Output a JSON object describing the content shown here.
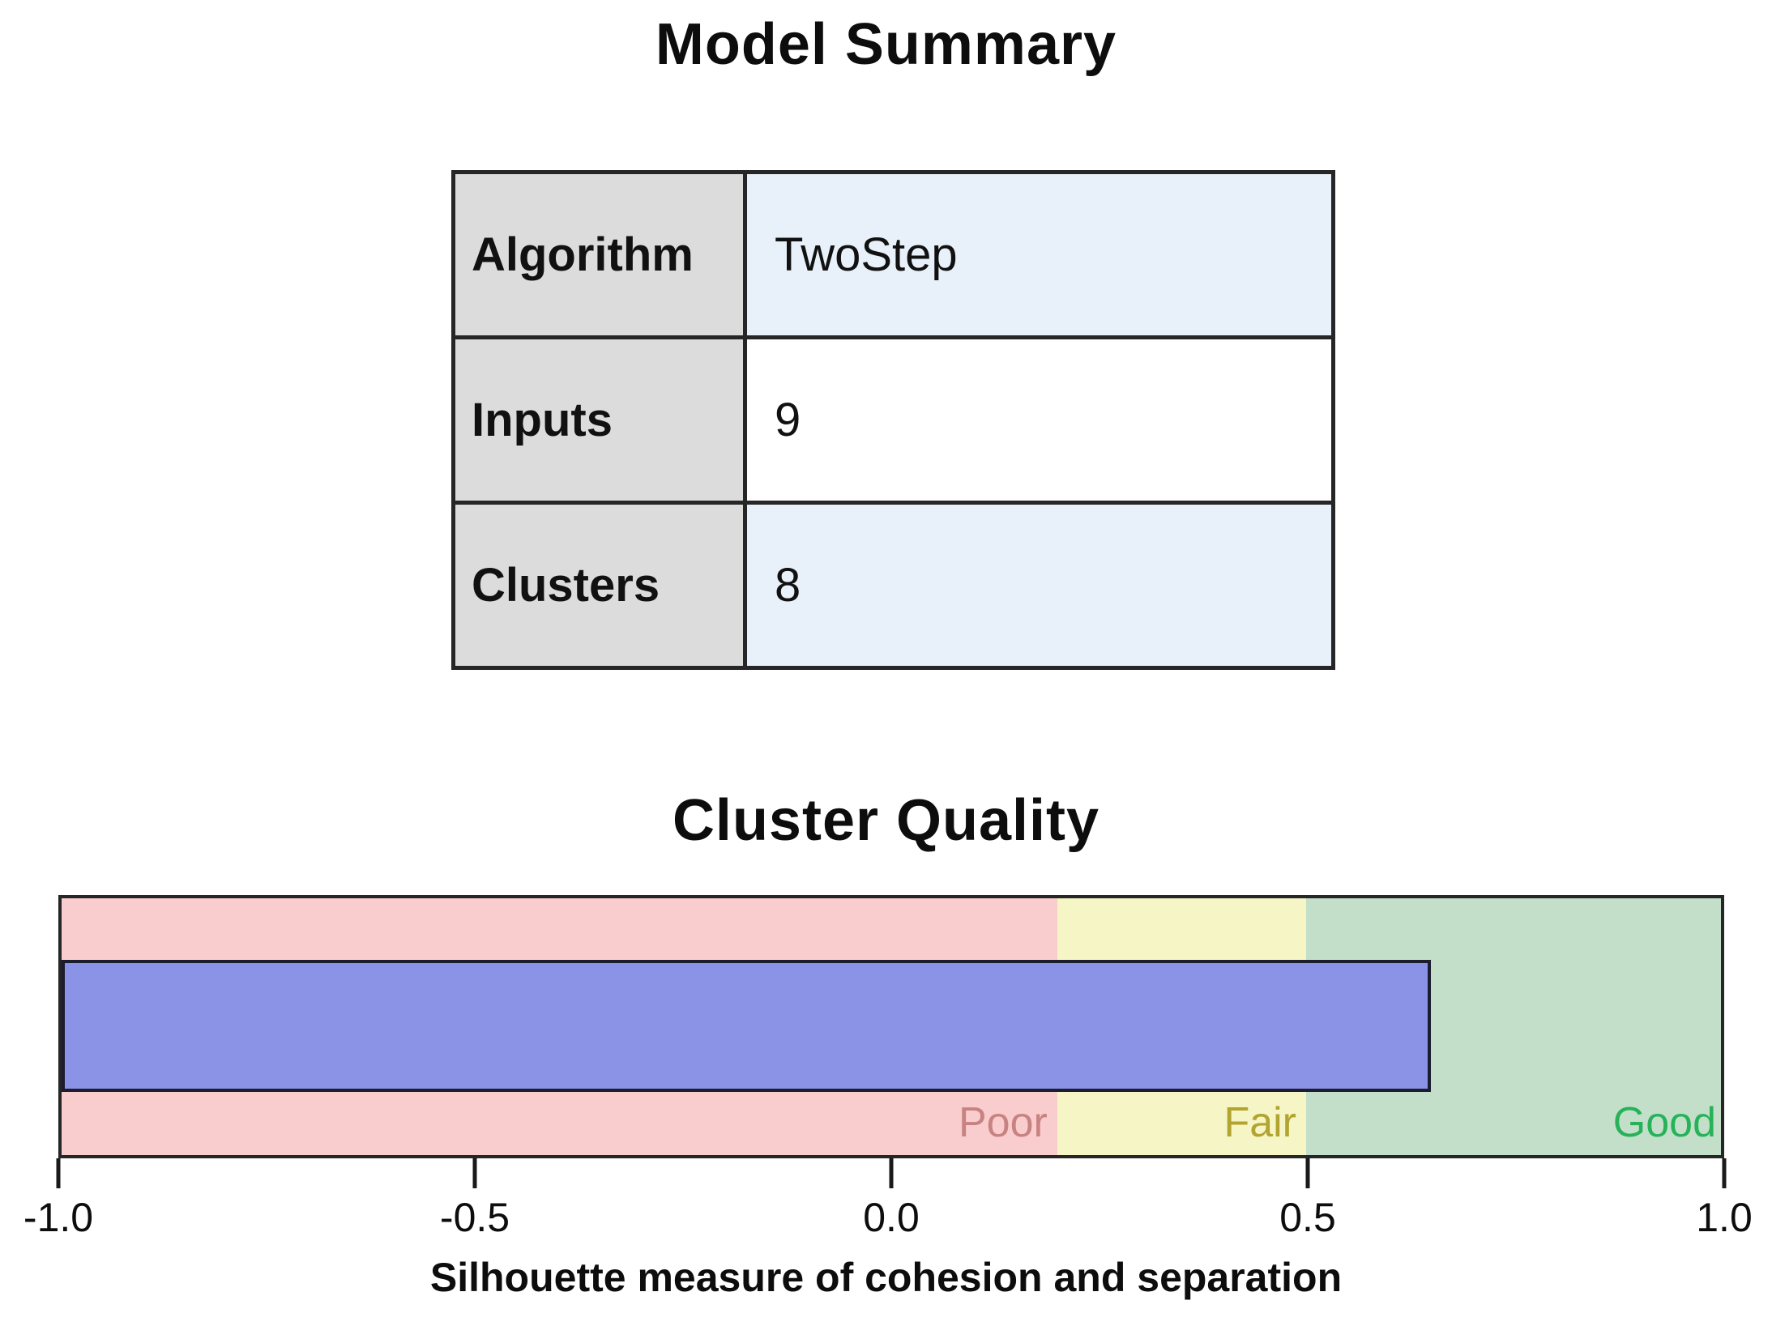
{
  "model_summary": {
    "title": "Model Summary",
    "rows": [
      {
        "label": "Algorithm",
        "value": "TwoStep"
      },
      {
        "label": "Inputs",
        "value": "9"
      },
      {
        "label": "Clusters",
        "value": "8"
      }
    ]
  },
  "chart_data": {
    "type": "bar",
    "title": "Cluster Quality",
    "xlabel": "Silhouette measure of cohesion and separation",
    "xlim": [
      -1.0,
      1.0
    ],
    "x_ticks": [
      "-1.0",
      "-0.5",
      "0.0",
      "0.5",
      "1.0"
    ],
    "grid": false,
    "legend": "none",
    "bar_start": -1.0,
    "bar_value": 0.65,
    "bar_color": "#8b93e6",
    "zones": [
      {
        "label": "Poor",
        "from": -1.0,
        "to": 0.2,
        "color": "#f9cdcd",
        "label_color": "#c98282"
      },
      {
        "label": "Fair",
        "from": 0.2,
        "to": 0.5,
        "color": "#f5f5c6",
        "label_color": "#b2a42e"
      },
      {
        "label": "Good",
        "from": 0.5,
        "to": 1.0,
        "color": "#c3dfc9",
        "label_color": "#27b259"
      }
    ]
  }
}
